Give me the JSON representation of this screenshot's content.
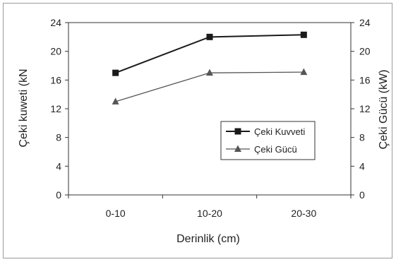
{
  "chart_data": {
    "type": "line",
    "title": "",
    "xlabel": "Derinlik (cm)",
    "ylabel": "Çeki kuweti (kN",
    "y2label": "Çeki Gücü (kW)",
    "categories": [
      "0-10",
      "10-20",
      "20-30"
    ],
    "ylim": [
      0,
      24
    ],
    "y2lim": [
      0,
      24
    ],
    "yticks": [
      0,
      4,
      8,
      12,
      16,
      20,
      24
    ],
    "y2ticks": [
      0,
      4,
      8,
      12,
      16,
      20,
      24
    ],
    "grid": false,
    "legend_position": "inside-right",
    "series": [
      {
        "name": "Çeki Kuvveti",
        "axis": "left",
        "values": [
          17,
          22,
          22.3
        ],
        "marker": "square",
        "color": "#1a1a1a"
      },
      {
        "name": "Çeki Gücü",
        "axis": "right",
        "values": [
          13,
          17,
          17.1
        ],
        "marker": "triangle",
        "color": "#555555"
      }
    ]
  }
}
